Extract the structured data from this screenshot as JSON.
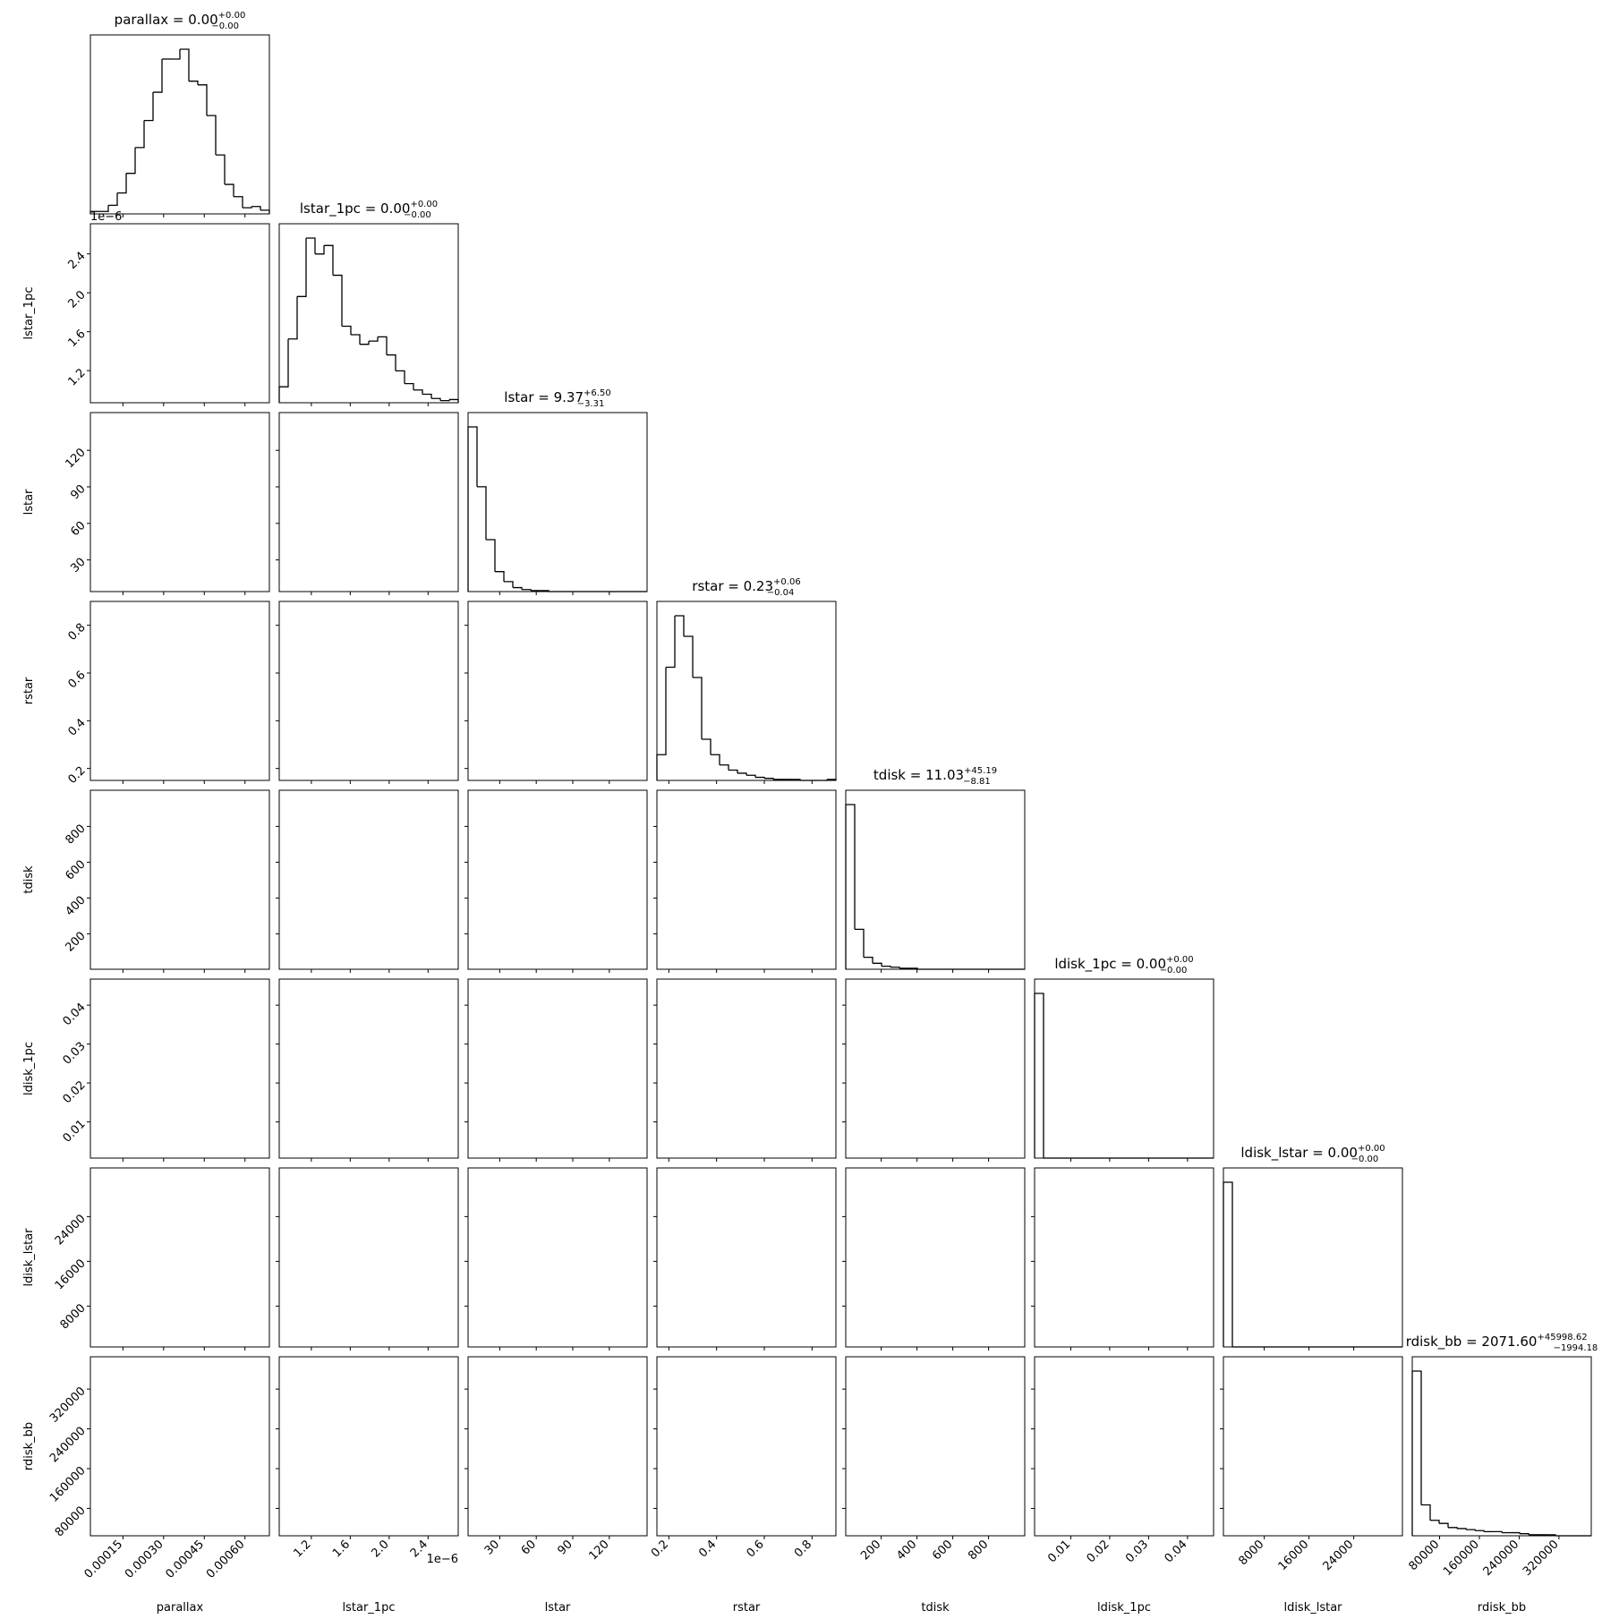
{
  "chart_data": {
    "type": "corner",
    "offset_label": "1e−6",
    "variables": [
      {
        "name": "parallax",
        "title": "parallax = 0.00",
        "title_plus": "+0.00",
        "title_minus": "−0.00",
        "lim": [
          3e-05,
          0.00069
        ],
        "ticks": [
          {
            "value": 0.00015,
            "label": "0.00015"
          },
          {
            "value": 0.0003,
            "label": "0.00030"
          },
          {
            "value": 0.00045,
            "label": "0.00045"
          },
          {
            "value": 0.0006,
            "label": "0.00060"
          }
        ],
        "bins": [
          3e-05,
          6.3e-05,
          9.6e-05,
          0.000129,
          0.000162,
          0.000195,
          0.000228,
          0.000261,
          0.000294,
          0.000327,
          0.00036,
          0.000393,
          0.000426,
          0.000459,
          0.000492,
          0.000525,
          0.000558,
          0.000591,
          0.000624,
          0.000657,
          0.00069
        ],
        "counts": [
          2,
          2,
          7,
          17,
          33,
          54,
          76,
          99,
          126,
          126,
          134,
          108,
          105,
          80,
          48,
          24,
          14,
          5,
          6,
          3
        ]
      },
      {
        "name": "lstar_1pc",
        "title": "lstar_1pc = 0.00",
        "title_plus": "+0.00",
        "title_minus": "−0.00",
        "lim": [
          0.87,
          2.71
        ],
        "ticks": [
          1.2,
          1.6,
          {
            "value": 2,
            "label": "2.0"
          },
          2.4
        ],
        "offset": true,
        "bins": [
          0.87,
          0.962,
          1.054,
          1.146,
          1.238,
          1.33,
          1.422,
          1.514,
          1.606,
          1.698,
          1.79,
          1.882,
          1.974,
          2.066,
          2.158,
          2.25,
          2.342,
          2.434,
          2.526,
          2.618,
          2.71
        ],
        "counts": [
          15,
          60,
          100,
          155,
          140,
          148,
          120,
          72,
          64,
          55,
          58,
          62,
          45,
          30,
          18,
          12,
          8,
          4,
          2,
          3
        ]
      },
      {
        "name": "lstar",
        "title": "lstar = 9.37",
        "title_plus": "+6.50",
        "title_minus": "−3.31",
        "lim": [
          4,
          151
        ],
        "ticks": [
          30,
          60,
          90,
          120
        ],
        "bins": [
          4,
          11.35,
          18.7,
          26.05,
          33.4,
          40.75,
          48.1,
          55.45,
          62.8,
          70.15,
          77.5,
          84.85,
          92.2,
          99.55,
          106.9,
          114.25,
          121.6,
          128.95,
          136.3,
          143.65,
          151
        ],
        "counts": [
          165,
          105,
          52,
          20,
          10,
          4,
          2,
          1,
          1,
          0,
          0,
          0,
          0,
          0,
          0,
          0,
          0,
          0,
          0,
          0
        ]
      },
      {
        "name": "rstar",
        "title": "rstar = 0.23",
        "title_plus": "+0.06",
        "title_minus": "−0.04",
        "lim": [
          0.15,
          0.9
        ],
        "ticks": [
          0.2,
          0.4,
          0.6,
          0.8
        ],
        "bins": [
          0.15,
          0.1875,
          0.225,
          0.2625,
          0.3,
          0.3375,
          0.375,
          0.4125,
          0.45,
          0.4875,
          0.525,
          0.5625,
          0.6,
          0.6375,
          0.675,
          0.7125,
          0.75,
          0.7875,
          0.825,
          0.8625,
          0.9
        ],
        "counts": [
          25,
          110,
          160,
          140,
          100,
          40,
          25,
          15,
          10,
          7,
          5,
          3,
          2,
          1,
          1,
          1,
          0,
          0,
          0,
          1
        ]
      },
      {
        "name": "tdisk",
        "title": "tdisk = 11.03",
        "title_plus": "+45.19",
        "title_minus": "−8.81",
        "lim": [
          2,
          1002
        ],
        "ticks": [
          200,
          400,
          600,
          800
        ],
        "bins": [
          2,
          52,
          102,
          152,
          202,
          252,
          302,
          352,
          402,
          452,
          502,
          552,
          602,
          652,
          702,
          752,
          802,
          852,
          902,
          952,
          1002
        ],
        "counts": [
          165,
          40,
          12,
          6,
          3,
          2,
          1,
          1,
          0,
          0,
          0,
          0,
          0,
          0,
          0,
          0,
          0,
          0,
          0,
          0
        ]
      },
      {
        "name": "ldisk_1pc",
        "title": "ldisk_1pc = 0.00",
        "title_plus": "+0.00",
        "title_minus": "−0.00",
        "lim": [
          0.0007,
          0.0467
        ],
        "ticks": [
          0.01,
          0.02,
          0.03,
          0.04
        ],
        "bins": [
          0.0007,
          0.003,
          0.0053,
          0.0076,
          0.0099,
          0.0122,
          0.0145,
          0.0168,
          0.0191,
          0.0214,
          0.0237,
          0.026,
          0.0283,
          0.0306,
          0.0329,
          0.0352,
          0.0375,
          0.0398,
          0.0421,
          0.0444,
          0.0467
        ],
        "counts": [
          165,
          0,
          0,
          0,
          0,
          0,
          0,
          0,
          0,
          0,
          0,
          0,
          0,
          0,
          0,
          0,
          0,
          0,
          0,
          0
        ]
      },
      {
        "name": "ldisk_lstar",
        "title": "ldisk_lstar = 0.00",
        "title_plus": "+0.00",
        "title_minus": "−0.00",
        "lim": [
          700,
          32700
        ],
        "ticks": [
          8000,
          16000,
          24000
        ],
        "bins": [
          700,
          2300,
          3900,
          5500,
          7100,
          8700,
          10300,
          11900,
          13500,
          15100,
          16700,
          18300,
          19900,
          21500,
          23100,
          24700,
          26300,
          27900,
          29500,
          31100,
          32700
        ],
        "counts": [
          165,
          0,
          0,
          0,
          0,
          0,
          0,
          0,
          0,
          0,
          0,
          0,
          0,
          0,
          0,
          0,
          0,
          0,
          0,
          0
        ]
      },
      {
        "name": "rdisk_bb",
        "title": "rdisk_bb = 2071.60",
        "title_plus": "+45998.62",
        "title_minus": "−1994.18",
        "lim": [
          25000,
          385000
        ],
        "ticks": [
          80000,
          160000,
          240000,
          320000
        ],
        "bins": [
          25000,
          43000,
          61000,
          79000,
          97000,
          115000,
          133000,
          151000,
          169000,
          187000,
          205000,
          223000,
          241000,
          259000,
          277000,
          295000,
          313000,
          331000,
          349000,
          367000,
          385000
        ],
        "counts": [
          160,
          30,
          15,
          12,
          8,
          7,
          6,
          5,
          4,
          4,
          3,
          3,
          2,
          1,
          1,
          1,
          0,
          0,
          0,
          0
        ]
      }
    ]
  }
}
